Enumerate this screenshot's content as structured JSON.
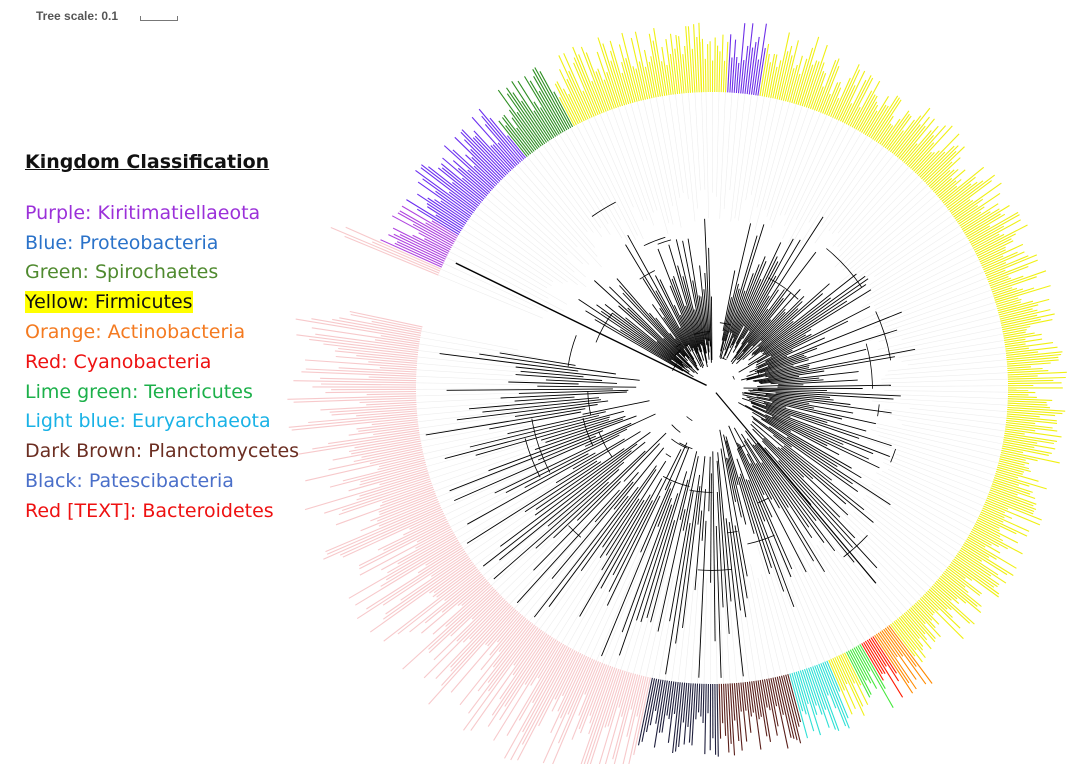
{
  "tree_scale": {
    "label": "Tree scale: 0.1"
  },
  "legend": {
    "title": "Kingdom Classification",
    "entries": [
      {
        "color_word": "Purple",
        "sep": ":",
        "name": " Kiritimatiellaeota",
        "color": "#9b30d9",
        "sep_color": "#9b30d9",
        "highlight": ""
      },
      {
        "color_word": "Blue",
        "sep": ":",
        "name": " Proteobacteria",
        "color": "#2a72c9",
        "sep_color": "#2a72c9",
        "highlight": ""
      },
      {
        "color_word": "Green",
        "sep": ":",
        "name": " Spirochaetes",
        "color": "#4f8a2f",
        "sep_color": "#4f8a2f",
        "highlight": ""
      },
      {
        "color_word": "Yellow",
        "sep": ":",
        "name": " Firmicutes",
        "color": "#111111",
        "sep_color": "#111111",
        "highlight": "#ffff00"
      },
      {
        "color_word": "Orange",
        "sep": ":",
        "name": " Actinobacteria",
        "color": "#f47a20",
        "sep_color": "#f47a20",
        "highlight": ""
      },
      {
        "color_word": "Red",
        "sep": ":",
        "name": " Cyanobacteria",
        "color": "#ee1111",
        "sep_color": "#ee1111",
        "highlight": ""
      },
      {
        "color_word": "Lime green",
        "sep": ":",
        "name": " Tenericutes",
        "color": "#1cb04a",
        "sep_color": "#1cb04a",
        "highlight": ""
      },
      {
        "color_word": "Light blue",
        "sep": ":",
        "name": " Euryarchaeota",
        "color": "#19b2e6",
        "sep_color": "#19b2e6",
        "highlight": ""
      },
      {
        "color_word": "Dark Brown",
        "sep": ":",
        "name": " Planctomycetes",
        "color": "#6b2e22",
        "sep_color": "#6b2e22",
        "highlight": ""
      },
      {
        "color_word": "Black",
        "sep": ":",
        "name": " Patescibacteria",
        "color": "#4a6fc9",
        "sep_color": "#4a6fc9",
        "highlight": ""
      },
      {
        "color_word": "Red [TEXT]",
        "sep": ":",
        "name": " Bacteroidetes",
        "color": "#ee1111",
        "sep_color": "#ee1111",
        "highlight": ""
      }
    ]
  },
  "ring_colors": {
    "pink": "#f7c9cb",
    "purple_light": "#b044e0",
    "purple_dark": "#6c2ff0",
    "green": "#2e8f22",
    "yellow": "#f0f013",
    "blue": "#6d2fe8",
    "red": "#ff1a00",
    "orange": "#ff8a00",
    "lime": "#44e83c",
    "cyan": "#2de0d5",
    "brown": "#5a1f1a",
    "navy": "#1e1e3c",
    "branch": "#000000"
  }
}
